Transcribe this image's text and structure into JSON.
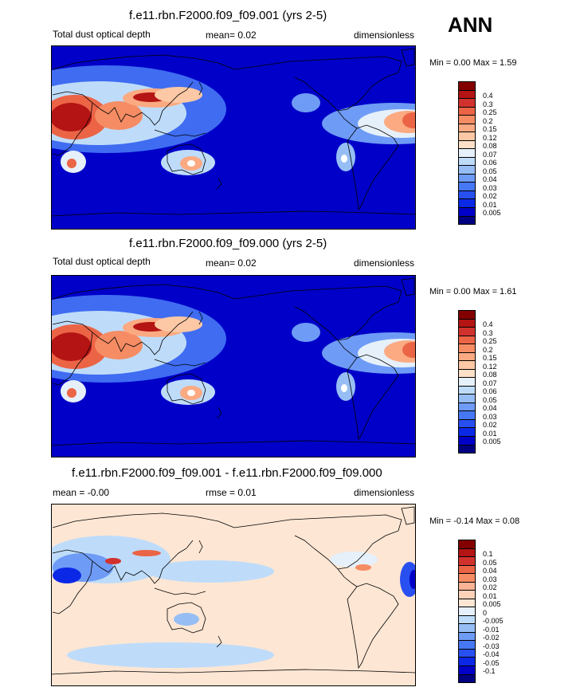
{
  "season": "ANN",
  "panels": [
    {
      "title": "f.e11.rbn.F2000.f09_f09.001 (yrs 2-5)",
      "left": "Total dust optical depth",
      "center": "mean=  0.02",
      "right": "dimensionless",
      "minmax": "Min =   0.00 Max =   1.59",
      "type": "field",
      "colors": [
        "#000080",
        "#0000c8",
        "#0a28e6",
        "#2850f0",
        "#4678f5",
        "#6e9bf5",
        "#96bef5",
        "#bedcfa",
        "#e6f0fa",
        "#fde0c8",
        "#fcc8a5",
        "#fbaa82",
        "#f58c64",
        "#eb6446",
        "#d2322d",
        "#b41414",
        "#820000"
      ],
      "labels": [
        "0.4",
        "0.3",
        "0.25",
        "0.2",
        "0.15",
        "0.12",
        "0.08",
        "0.07",
        "0.06",
        "0.05",
        "0.04",
        "0.03",
        "0.02",
        "0.01",
        "0.005"
      ]
    },
    {
      "title": "f.e11.rbn.F2000.f09_f09.000 (yrs 2-5)",
      "left": "Total dust optical depth",
      "center": "mean=  0.02",
      "right": "dimensionless",
      "minmax": "Min =   0.00 Max =   1.61",
      "type": "field",
      "colors": [
        "#000080",
        "#0000c8",
        "#0a28e6",
        "#2850f0",
        "#4678f5",
        "#6e9bf5",
        "#96bef5",
        "#bedcfa",
        "#e6f0fa",
        "#fde0c8",
        "#fcc8a5",
        "#fbaa82",
        "#f58c64",
        "#eb6446",
        "#d2322d",
        "#b41414",
        "#820000"
      ],
      "labels": [
        "0.4",
        "0.3",
        "0.25",
        "0.2",
        "0.15",
        "0.12",
        "0.08",
        "0.07",
        "0.06",
        "0.05",
        "0.04",
        "0.03",
        "0.02",
        "0.01",
        "0.005"
      ]
    },
    {
      "title": "f.e11.rbn.F2000.f09_f09.001 - f.e11.rbn.F2000.f09_f09.000",
      "left": "mean = -0.00",
      "center": "rmse =   0.01",
      "right": "dimensionless",
      "minmax": "Min =  -0.14 Max =   0.08",
      "type": "diff",
      "colors": [
        "#000080",
        "#0000c8",
        "#0a28e6",
        "#2850f0",
        "#4678f5",
        "#6e9bf5",
        "#96bef5",
        "#bedcfa",
        "#e6f0fa",
        "#fde6d4",
        "#fcd2b9",
        "#fbb496",
        "#f58c64",
        "#eb6446",
        "#d2322d",
        "#b41414",
        "#820000"
      ],
      "labels": [
        "0.1",
        "0.05",
        "0.04",
        "0.03",
        "0.02",
        "0.01",
        "0.005",
        "0",
        "-0.005",
        "-0.01",
        "-0.02",
        "-0.03",
        "-0.04",
        "-0.05",
        "-0.1"
      ]
    }
  ]
}
